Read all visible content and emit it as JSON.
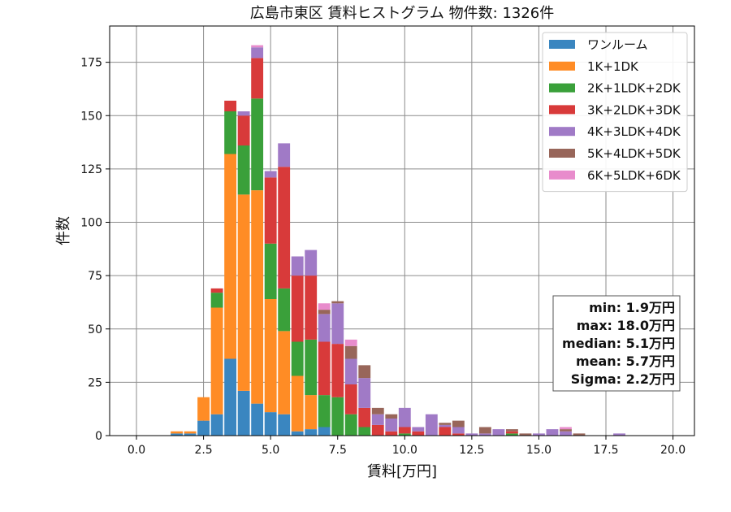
{
  "chart_data": {
    "type": "bar",
    "stacked": true,
    "title": "広島市東区 賃料ヒストグラム 物件数: 1326件",
    "xlabel": "賃料[万円]",
    "ylabel": "件数",
    "xlim": [
      -1.0,
      20.8
    ],
    "ylim": [
      0,
      192
    ],
    "xticks": [
      "0.0",
      "2.5",
      "5.0",
      "7.5",
      "10.0",
      "12.5",
      "15.0",
      "17.5",
      "20.0"
    ],
    "xtick_values": [
      0,
      2.5,
      5,
      7.5,
      10,
      12.5,
      15,
      17.5,
      20
    ],
    "yticks": [
      "0",
      "25",
      "50",
      "75",
      "100",
      "125",
      "150",
      "175"
    ],
    "ytick_values": [
      0,
      25,
      50,
      75,
      100,
      125,
      150,
      175
    ],
    "grid": true,
    "legend_position": "top-right",
    "bin_width": 0.5,
    "x": [
      1.5,
      2.0,
      2.5,
      3.0,
      3.5,
      4.0,
      4.5,
      5.0,
      5.5,
      6.0,
      6.5,
      7.0,
      7.5,
      8.0,
      8.5,
      9.0,
      9.5,
      10.0,
      10.5,
      11.0,
      11.5,
      12.0,
      12.5,
      13.0,
      13.5,
      14.0,
      14.5,
      15.0,
      15.5,
      16.0,
      16.5,
      17.0,
      17.5,
      18.0
    ],
    "series": [
      {
        "name": "ワンルーム",
        "color": "#3a86c0",
        "values": [
          1,
          1,
          7,
          10,
          36,
          21,
          15,
          11,
          10,
          2,
          3,
          4,
          0,
          0,
          0,
          0,
          0,
          0,
          0,
          0,
          0,
          0,
          0,
          0,
          0,
          0,
          0,
          0,
          0,
          0,
          0,
          0,
          0,
          0
        ]
      },
      {
        "name": "1K+1DK",
        "color": "#ff8c25",
        "values": [
          1,
          1,
          11,
          50,
          96,
          92,
          100,
          53,
          39,
          26,
          16,
          0,
          0,
          0,
          0,
          0,
          0,
          0,
          0,
          0,
          0,
          0,
          0,
          0,
          0,
          0,
          0,
          0,
          0,
          0,
          0,
          0,
          0,
          0
        ]
      },
      {
        "name": "2K+1LDK+2DK",
        "color": "#3aa03a",
        "values": [
          0,
          0,
          0,
          7,
          20,
          23,
          43,
          26,
          20,
          16,
          26,
          15,
          18,
          10,
          4,
          0,
          0,
          1,
          0,
          0,
          0,
          0,
          0,
          0,
          0,
          1,
          0,
          0,
          0,
          0,
          0,
          0,
          0,
          0
        ]
      },
      {
        "name": "3K+2LDK+3DK",
        "color": "#d83a3a",
        "values": [
          0,
          0,
          0,
          2,
          5,
          14,
          19,
          31,
          57,
          31,
          30,
          25,
          25,
          14,
          9,
          5,
          2,
          3,
          2,
          0,
          4,
          1,
          0,
          0,
          0,
          1,
          0,
          0,
          0,
          0,
          0,
          0,
          0,
          0
        ]
      },
      {
        "name": "4K+3LDK+4DK",
        "color": "#a07ac6",
        "values": [
          0,
          0,
          0,
          0,
          0,
          2,
          5,
          3,
          11,
          9,
          12,
          13,
          19,
          12,
          14,
          5,
          6,
          9,
          2,
          10,
          1,
          3,
          1,
          1,
          3,
          0,
          0,
          1,
          3,
          2,
          0,
          0,
          0,
          1
        ]
      },
      {
        "name": "5K+4LDK+5DK",
        "color": "#98665a",
        "values": [
          0,
          0,
          0,
          0,
          0,
          0,
          0,
          0,
          0,
          0,
          0,
          2,
          1,
          6,
          6,
          3,
          2,
          0,
          0,
          0,
          1,
          3,
          0,
          3,
          0,
          1,
          1,
          0,
          0,
          1,
          1,
          0,
          0,
          0
        ]
      },
      {
        "name": "6K+5LDK+6DK",
        "color": "#e88ccc",
        "values": [
          0,
          0,
          0,
          0,
          0,
          0,
          1,
          0,
          0,
          0,
          0,
          3,
          0,
          3,
          0,
          0,
          0,
          0,
          0,
          0,
          0,
          0,
          0,
          0,
          0,
          0,
          0,
          0,
          0,
          1,
          0,
          0,
          0,
          0
        ]
      }
    ],
    "stats": [
      "min: 1.9万円",
      "max: 18.0万円",
      "median: 5.1万円",
      "mean: 5.7万円",
      "Sigma: 2.2万円"
    ]
  }
}
